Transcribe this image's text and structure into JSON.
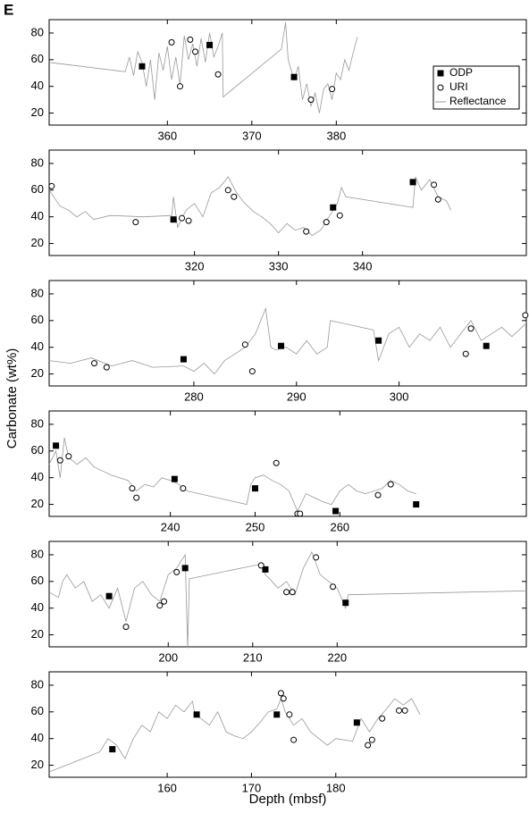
{
  "panel_label": "E",
  "y_label": "Carbonate (wt%)",
  "x_label": "Depth (mbsf)",
  "chart_data": [
    {
      "type": "line",
      "legend": "upper right",
      "xlim": [
        346,
        402.5
      ],
      "ylim": [
        11,
        90
      ],
      "xticks": [
        360,
        370,
        380
      ],
      "yticks": [
        20,
        40,
        60,
        80
      ],
      "series": [
        {
          "name": "ODP",
          "mark": "square",
          "color": "#000000",
          "x": [
            357,
            365,
            375
          ],
          "values": [
            55,
            71,
            47
          ]
        },
        {
          "name": "URI",
          "mark": "circle",
          "color": "#000000",
          "x": [
            360.5,
            361.5,
            362.7,
            363.3,
            366,
            377,
            379.5
          ],
          "values": [
            73,
            40,
            75,
            66,
            49,
            30,
            38
          ]
        },
        {
          "name": "Reflectance",
          "mark": "line",
          "color": "#999999",
          "x": [
            346,
            355,
            355.5,
            356,
            356.5,
            357,
            357.5,
            358,
            358.5,
            359,
            359.5,
            360,
            360.5,
            361,
            361.5,
            362,
            362.5,
            363,
            363.5,
            364,
            364.5,
            365,
            365.5,
            366,
            366.5,
            366.6,
            373.5,
            374,
            374.3,
            375,
            375.5,
            376,
            376.5,
            377,
            377.5,
            378,
            378.5,
            379,
            379.5,
            380,
            380.5,
            381,
            381.5,
            382,
            382.5
          ],
          "values": [
            58,
            51,
            62,
            48,
            66,
            58,
            40,
            60,
            30,
            65,
            52,
            70,
            45,
            62,
            41,
            78,
            60,
            72,
            55,
            76,
            58,
            80,
            62,
            70,
            80,
            32,
            68,
            88,
            60,
            45,
            55,
            30,
            42,
            25,
            35,
            20,
            38,
            42,
            30,
            50,
            45,
            60,
            52,
            65,
            77
          ]
        }
      ]
    },
    {
      "type": "line",
      "xlim": [
        302.7,
        359.5
      ],
      "ylim": [
        11,
        90
      ],
      "xticks": [
        320,
        330,
        340
      ],
      "yticks": [
        20,
        40,
        60,
        80
      ],
      "series": [
        {
          "mark": "square",
          "color": "#000000",
          "x": [
            317.5,
            336.5,
            346
          ],
          "values": [
            38,
            47,
            66
          ]
        },
        {
          "mark": "circle",
          "color": "#000000",
          "x": [
            303,
            313,
            318.5,
            319.3,
            324,
            324.7,
            333.3,
            335.7,
            337.3,
            348.5,
            349
          ],
          "values": [
            63,
            36,
            39,
            37,
            60,
            55,
            29,
            36,
            41,
            64,
            53
          ]
        },
        {
          "mark": "line",
          "color": "#999999",
          "x": [
            302.7,
            304,
            305,
            306,
            307,
            308,
            310,
            314,
            317.3,
            317.5,
            318,
            319,
            320,
            321,
            322,
            323,
            324,
            325,
            326,
            327,
            328,
            329,
            330,
            331,
            332,
            333,
            334,
            335,
            336,
            337,
            337.5,
            338,
            346,
            346.3,
            347,
            348,
            349,
            350,
            350.5
          ],
          "values": [
            60,
            48,
            45,
            40,
            44,
            38,
            41,
            40,
            41,
            55,
            32,
            45,
            50,
            40,
            58,
            62,
            70,
            58,
            50,
            44,
            40,
            35,
            28,
            35,
            30,
            32,
            26,
            30,
            40,
            50,
            62,
            55,
            47,
            70,
            60,
            68,
            55,
            52,
            45
          ]
        }
      ]
    },
    {
      "type": "line",
      "xlim": [
        265.9,
        312.4
      ],
      "ylim": [
        11,
        90
      ],
      "xticks": [
        280,
        290,
        300
      ],
      "yticks": [
        20,
        40,
        60,
        80
      ],
      "series": [
        {
          "mark": "square",
          "color": "#000000",
          "x": [
            279,
            288.5,
            298,
            308.5
          ],
          "values": [
            31,
            41,
            45,
            41
          ]
        },
        {
          "mark": "circle",
          "color": "#000000",
          "x": [
            270.3,
            271.5,
            285,
            285.7,
            306.5,
            307,
            312.3
          ],
          "values": [
            28,
            25,
            42,
            22,
            35,
            54,
            64
          ]
        },
        {
          "mark": "line",
          "color": "#999999",
          "x": [
            265.9,
            268,
            270,
            272,
            274,
            276,
            279,
            280,
            281,
            282,
            283,
            284,
            285,
            286,
            287,
            287.5,
            288,
            289,
            290,
            291,
            292,
            293,
            293.3,
            297.5,
            298,
            299,
            300,
            301,
            302,
            303,
            304,
            305,
            306,
            307,
            308,
            309,
            310,
            311,
            312.4
          ],
          "values": [
            30,
            28,
            32,
            26,
            30,
            25,
            26,
            22,
            28,
            20,
            30,
            35,
            40,
            50,
            69,
            40,
            38,
            40,
            35,
            45,
            35,
            40,
            60,
            53,
            30,
            50,
            55,
            40,
            50,
            45,
            55,
            40,
            50,
            60,
            45,
            50,
            55,
            48,
            58
          ]
        }
      ]
    },
    {
      "type": "line",
      "xlim": [
        225.7,
        282
      ],
      "ylim": [
        11,
        90
      ],
      "xticks": [
        240,
        250,
        260
      ],
      "yticks": [
        20,
        40,
        60,
        80
      ],
      "series": [
        {
          "mark": "square",
          "color": "#000000",
          "x": [
            226.5,
            240.5,
            250,
            259.5,
            269
          ],
          "values": [
            64,
            39,
            32,
            15,
            20
          ]
        },
        {
          "mark": "circle",
          "color": "#000000",
          "x": [
            227,
            228,
            235.5,
            236,
            241.5,
            252.5,
            255,
            255.3,
            264.5,
            266
          ],
          "values": [
            53,
            56,
            32,
            25,
            32,
            51,
            13,
            13,
            27,
            35
          ]
        },
        {
          "mark": "line",
          "color": "#999999",
          "x": [
            225.7,
            226.5,
            227,
            227.5,
            228,
            229,
            230,
            231,
            232,
            233,
            234,
            235,
            236,
            237,
            238,
            239,
            240,
            241,
            242,
            249,
            249.5,
            250,
            251,
            252,
            253,
            254,
            255,
            256,
            257,
            258,
            259,
            260,
            261,
            262,
            263,
            264,
            265,
            266,
            267,
            268,
            269
          ],
          "values": [
            50,
            60,
            40,
            70,
            55,
            50,
            55,
            48,
            45,
            42,
            40,
            38,
            30,
            35,
            33,
            40,
            38,
            35,
            30,
            20,
            35,
            40,
            42,
            38,
            35,
            30,
            15,
            28,
            25,
            22,
            20,
            30,
            35,
            30,
            28,
            30,
            32,
            38,
            35,
            30,
            28
          ]
        }
      ]
    },
    {
      "type": "line",
      "xlim": [
        185.9,
        242.4
      ],
      "ylim": [
        11,
        90
      ],
      "xticks": [
        200,
        210,
        220
      ],
      "yticks": [
        20,
        40,
        60,
        80
      ],
      "series": [
        {
          "mark": "square",
          "color": "#000000",
          "x": [
            193,
            202,
            211.5,
            221
          ],
          "values": [
            49,
            70,
            69,
            44
          ]
        },
        {
          "mark": "circle",
          "color": "#000000",
          "x": [
            195,
            199,
            199.5,
            201,
            211,
            214,
            214.7,
            217.5,
            219.5
          ],
          "values": [
            26,
            42,
            45,
            67,
            72,
            52,
            52,
            78,
            56
          ]
        },
        {
          "mark": "line",
          "color": "#999999",
          "x": [
            185.9,
            187,
            187.5,
            188,
            189,
            190,
            191,
            192,
            193,
            194,
            195,
            196,
            197,
            198,
            199,
            200,
            201,
            202,
            202.3,
            202.5,
            211,
            211.5,
            212,
            213,
            214,
            215,
            216,
            217,
            218,
            219,
            220,
            221,
            221.3,
            242.4
          ],
          "values": [
            52,
            48,
            60,
            65,
            55,
            60,
            45,
            50,
            40,
            55,
            30,
            55,
            60,
            50,
            45,
            65,
            70,
            80,
            10,
            62,
            73,
            65,
            62,
            55,
            60,
            50,
            70,
            82,
            65,
            60,
            55,
            40,
            50,
            53
          ]
        }
      ]
    },
    {
      "type": "line",
      "xlim": [
        146,
        202.6
      ],
      "ylim": [
        11,
        90
      ],
      "xticks": [
        160,
        170,
        180
      ],
      "yticks": [
        20,
        40,
        60,
        80
      ],
      "series": [
        {
          "mark": "square",
          "color": "#000000",
          "x": [
            153.5,
            163.5,
            173,
            182.5
          ],
          "values": [
            32,
            58,
            58,
            52
          ]
        },
        {
          "mark": "circle",
          "color": "#000000",
          "x": [
            173.5,
            173.8,
            174.5,
            175,
            183.8,
            184.3,
            185.5,
            187.5,
            188.2
          ],
          "values": [
            74,
            70,
            58,
            39,
            35,
            39,
            55,
            61,
            61
          ]
        },
        {
          "mark": "line",
          "color": "#999999",
          "x": [
            146,
            148,
            150,
            152,
            153,
            154,
            155,
            156,
            157,
            158,
            159,
            160,
            161,
            162,
            163,
            163.3,
            164,
            165,
            166,
            167,
            168,
            169,
            170,
            171,
            172,
            173,
            173.5,
            174,
            175,
            176,
            177,
            178,
            179,
            180,
            182,
            183,
            184,
            185,
            186,
            187,
            188,
            189,
            190
          ],
          "values": [
            15,
            20,
            25,
            30,
            40,
            35,
            25,
            40,
            50,
            45,
            60,
            55,
            65,
            60,
            68,
            58,
            55,
            50,
            60,
            45,
            42,
            40,
            45,
            52,
            60,
            62,
            70,
            60,
            50,
            55,
            45,
            40,
            35,
            40,
            38,
            55,
            45,
            55,
            62,
            70,
            65,
            70,
            58
          ]
        }
      ]
    }
  ]
}
